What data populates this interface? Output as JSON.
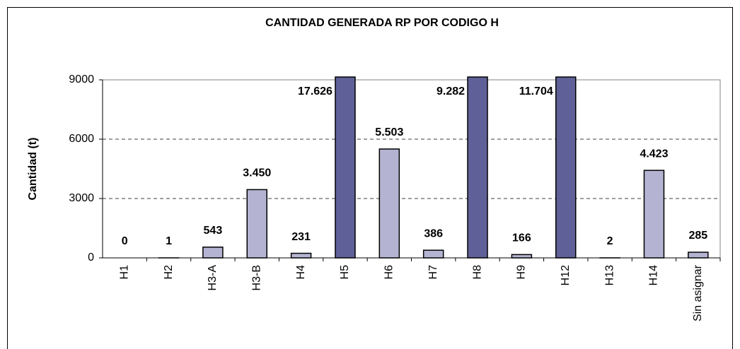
{
  "chart_data": {
    "type": "bar",
    "title": "CANTIDAD GENERADA RP POR CODIGO H",
    "y_label": "Cantidad (t)",
    "categories": [
      "H1",
      "H2",
      "H3-A",
      "H3-B",
      "H4",
      "H5",
      "H6",
      "H7",
      "H8",
      "H9",
      "H12",
      "H13",
      "H14",
      "Sin asignar"
    ],
    "values": [
      0,
      1,
      543,
      3450,
      231,
      17626,
      5503,
      386,
      9282,
      166,
      11704,
      2,
      4423,
      285
    ],
    "value_labels": [
      "0",
      "1",
      "543",
      "3.450",
      "231",
      "17.626",
      "5.503",
      "386",
      "9.282",
      "166",
      "11.704",
      "2",
      "4.423",
      "285"
    ],
    "colors": [
      "#b4b4d2",
      "#b4b4d2",
      "#b4b4d2",
      "#b4b4d2",
      "#b4b4d2",
      "#606098",
      "#b4b4d2",
      "#b4b4d2",
      "#606098",
      "#b4b4d2",
      "#606098",
      "#b4b4d2",
      "#b4b4d2",
      "#b4b4d2"
    ],
    "ylim": [
      0,
      9000
    ],
    "yticks": [
      0,
      3000,
      6000,
      9000
    ],
    "grid": true
  }
}
